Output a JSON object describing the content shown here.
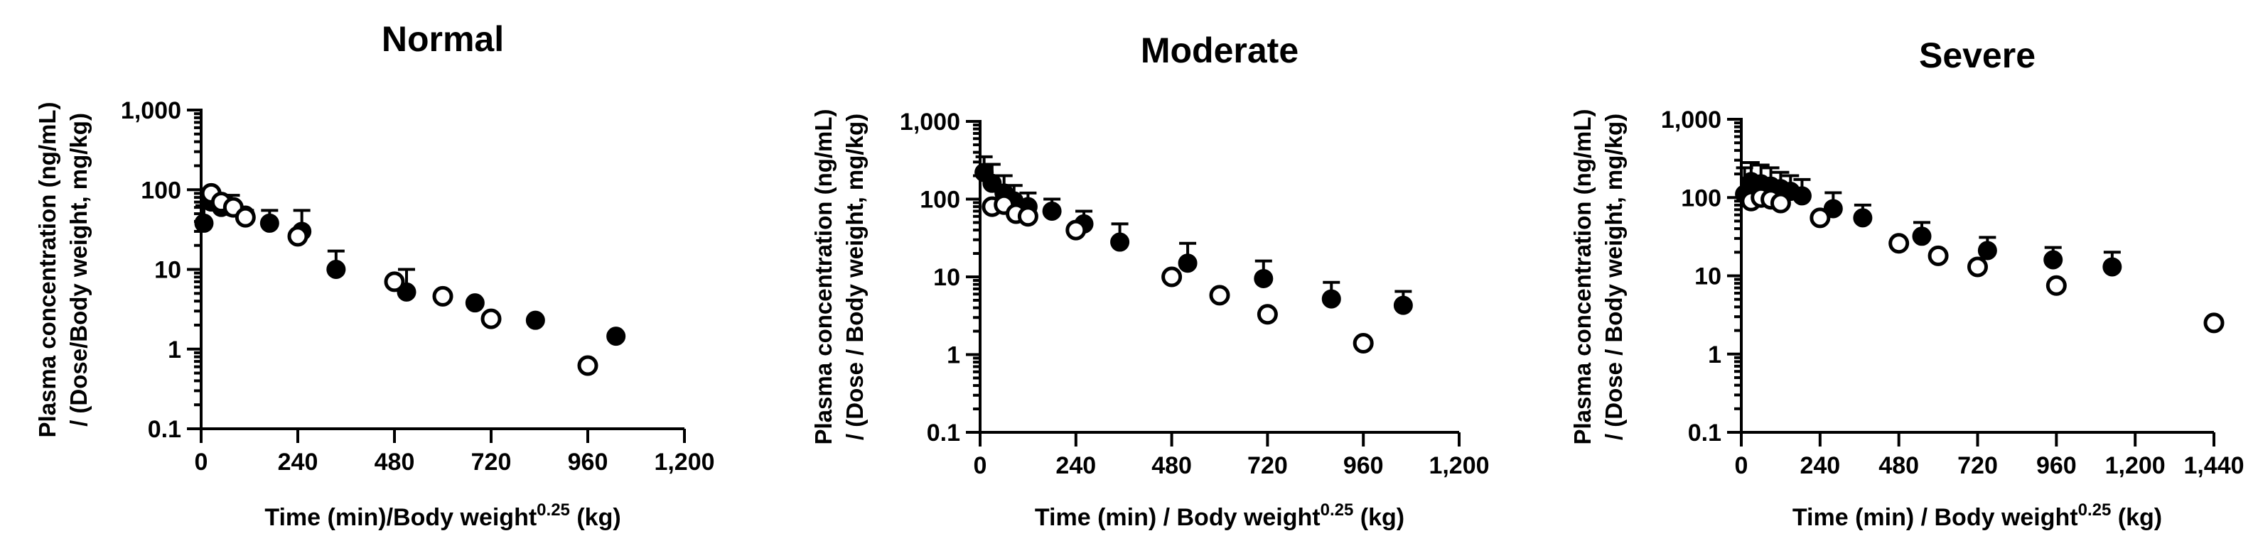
{
  "chart_data": [
    {
      "type": "scatter",
      "title": "Normal",
      "xlabel": {
        "main": "Time (min)/Body weight",
        "sup": "0.25",
        "unit": " (kg)"
      },
      "ylabel": [
        "Plasma concentration (ng/mL)",
        "/ (Dose/Body weight, mg/kg)"
      ],
      "x_scale": "linear",
      "y_scale": "log",
      "xlim": [
        0,
        1200
      ],
      "ylim": [
        0.1,
        1000
      ],
      "x_ticks": [
        0,
        240,
        480,
        720,
        960,
        1200
      ],
      "x_tick_labels": [
        "0",
        "240",
        "480",
        "720",
        "960",
        "1,200"
      ],
      "y_ticks": [
        0.1,
        1,
        10,
        100,
        1000
      ],
      "y_tick_labels": [
        "0.1",
        "1",
        "10",
        "100",
        "1,000"
      ],
      "series": [
        {
          "name": "filled",
          "marker": "filled-circle",
          "x": [
            7,
            25,
            50,
            75,
            110,
            170,
            250,
            335,
            510,
            680,
            830,
            1030
          ],
          "y": [
            38,
            70,
            60,
            60,
            48,
            38,
            30,
            10,
            5.2,
            3.8,
            2.3,
            1.45
          ],
          "y_err_upper": [
            63,
            95,
            85,
            85,
            55,
            55,
            55,
            17,
            10,
            null,
            null,
            null
          ]
        },
        {
          "name": "open",
          "marker": "open-circle",
          "x": [
            25,
            50,
            80,
            110,
            240,
            480,
            600,
            720,
            960
          ],
          "y": [
            90,
            70,
            60,
            45,
            26,
            7,
            4.6,
            2.4,
            0.62
          ]
        }
      ]
    },
    {
      "type": "scatter",
      "title": "Moderate",
      "xlabel": {
        "main": "Time (min) / Body weight",
        "sup": "0.25",
        "unit": " (kg)"
      },
      "ylabel": [
        "Plasma concentration (ng/mL)",
        "/ (Dose / Body weight, mg/kg)"
      ],
      "x_scale": "linear",
      "y_scale": "log",
      "xlim": [
        0,
        1200
      ],
      "ylim": [
        0.1,
        1000
      ],
      "x_ticks": [
        0,
        240,
        480,
        720,
        960,
        1200
      ],
      "x_tick_labels": [
        "0",
        "240",
        "480",
        "720",
        "960",
        "1,200"
      ],
      "y_ticks": [
        0.1,
        1,
        10,
        100,
        1000
      ],
      "y_tick_labels": [
        "0.1",
        "1",
        "10",
        "100",
        "1,000"
      ],
      "series": [
        {
          "name": "filled",
          "marker": "filled-circle",
          "x": [
            10,
            30,
            60,
            85,
            120,
            180,
            260,
            350,
            520,
            710,
            880,
            1060
          ],
          "y": [
            220,
            160,
            120,
            95,
            80,
            70,
            48,
            28,
            15,
            9.5,
            5.2,
            4.3
          ],
          "y_err_upper": [
            350,
            280,
            200,
            150,
            120,
            100,
            70,
            48,
            27,
            16,
            8.5,
            6.5
          ]
        },
        {
          "name": "open",
          "marker": "open-circle",
          "x": [
            30,
            60,
            90,
            120,
            240,
            480,
            600,
            720,
            960
          ],
          "y": [
            80,
            85,
            65,
            60,
            40,
            10,
            5.8,
            3.3,
            1.4
          ]
        }
      ]
    },
    {
      "type": "scatter",
      "title": "Severe",
      "xlabel": {
        "main": "Time (min) / Body weight",
        "sup": "0.25",
        "unit": " (kg)"
      },
      "ylabel": [
        "Plasma concentration (ng/mL)",
        "/ (Dose / Body weight, mg/kg)"
      ],
      "x_scale": "linear",
      "y_scale": "log",
      "xlim": [
        0,
        1440
      ],
      "ylim": [
        0.1,
        1000
      ],
      "x_ticks": [
        0,
        240,
        480,
        720,
        960,
        1200,
        1440
      ],
      "x_tick_labels": [
        "0",
        "240",
        "480",
        "720",
        "960",
        "1,200",
        "1,440"
      ],
      "y_ticks": [
        0.1,
        1,
        10,
        100,
        1000
      ],
      "y_tick_labels": [
        "0.1",
        "1",
        "10",
        "100",
        "1,000"
      ],
      "series": [
        {
          "name": "filled",
          "marker": "filled-circle",
          "x": [
            10,
            30,
            60,
            90,
            120,
            150,
            185,
            280,
            370,
            550,
            750,
            950,
            1130
          ],
          "y": [
            110,
            160,
            150,
            140,
            130,
            120,
            105,
            72,
            55,
            32,
            21,
            16,
            13
          ],
          "y_err_upper": [
            240,
            280,
            260,
            240,
            210,
            190,
            170,
            115,
            80,
            48,
            31,
            23,
            20
          ]
        },
        {
          "name": "open",
          "marker": "open-circle",
          "x": [
            30,
            60,
            90,
            120,
            240,
            480,
            600,
            720,
            960,
            1440
          ],
          "y": [
            90,
            100,
            95,
            85,
            55,
            26,
            18,
            13,
            7.5,
            2.5
          ]
        }
      ]
    }
  ]
}
